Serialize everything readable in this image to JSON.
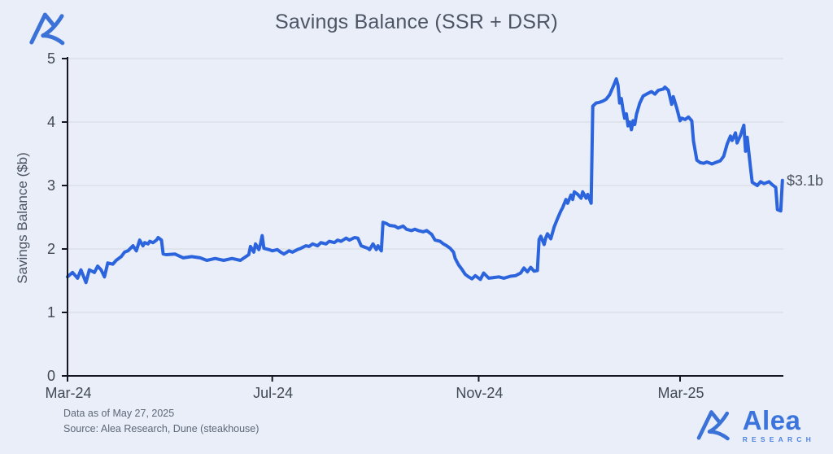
{
  "chart": {
    "title": "Savings Balance (SSR + DSR)",
    "ylabel": "Savings Balance ($b)"
  },
  "footer": {
    "line1": "Data as of May 27, 2025",
    "line2": "Source: Alea Research, Dune (steakhouse)"
  },
  "brand": {
    "name": "Alea",
    "subtitle": "RESEARCH"
  },
  "colors": {
    "background": "#e9eef8",
    "line": "#2b64dd",
    "gridline": "#d5d8df",
    "axis": "#15161f",
    "tick_text": "#414855",
    "logo_blue": "#3b72d8"
  },
  "chart_data": {
    "type": "line",
    "title": "Savings Balance (SSR + DSR)",
    "xlabel": "",
    "ylabel": "Savings Balance ($b)",
    "ylim": [
      0,
      5
    ],
    "y_ticks": [
      0,
      1,
      2,
      3,
      4,
      5
    ],
    "grid": "horizontal",
    "legend": "none",
    "x_unit": "days since 2024-03-01",
    "x_ticks": [
      {
        "label": "Mar-24",
        "day": 0
      },
      {
        "label": "Jul-24",
        "day": 122
      },
      {
        "label": "Nov-24",
        "day": 245
      },
      {
        "label": "Mar-25",
        "day": 365
      }
    ],
    "end_label": {
      "text": "$3.1b",
      "day": 426,
      "value": 3.08
    },
    "series": [
      {
        "name": "Savings Balance (SSR + DSR), $b",
        "points": [
          [
            0,
            1.56
          ],
          [
            3,
            1.63
          ],
          [
            6,
            1.54
          ],
          [
            8,
            1.67
          ],
          [
            11,
            1.47
          ],
          [
            13,
            1.67
          ],
          [
            16,
            1.63
          ],
          [
            18,
            1.73
          ],
          [
            20,
            1.67
          ],
          [
            22,
            1.56
          ],
          [
            24,
            1.78
          ],
          [
            27,
            1.76
          ],
          [
            29,
            1.82
          ],
          [
            32,
            1.88
          ],
          [
            34,
            1.95
          ],
          [
            36,
            1.97
          ],
          [
            39,
            2.05
          ],
          [
            41,
            1.97
          ],
          [
            43,
            2.14
          ],
          [
            45,
            2.05
          ],
          [
            46,
            2.1
          ],
          [
            48,
            2.08
          ],
          [
            49,
            2.12
          ],
          [
            51,
            2.1
          ],
          [
            53,
            2.14
          ],
          [
            54,
            2.18
          ],
          [
            56,
            2.14
          ],
          [
            57,
            1.92
          ],
          [
            59,
            1.91
          ],
          [
            64,
            1.92
          ],
          [
            69,
            1.86
          ],
          [
            74,
            1.88
          ],
          [
            79,
            1.86
          ],
          [
            83,
            1.82
          ],
          [
            88,
            1.85
          ],
          [
            93,
            1.82
          ],
          [
            98,
            1.85
          ],
          [
            103,
            1.82
          ],
          [
            108,
            1.91
          ],
          [
            109,
            2.04
          ],
          [
            111,
            1.95
          ],
          [
            112,
            2.08
          ],
          [
            114,
            1.99
          ],
          [
            115,
            2.08
          ],
          [
            116,
            2.21
          ],
          [
            117,
            2.01
          ],
          [
            120,
            1.99
          ],
          [
            122,
            1.97
          ],
          [
            125,
            1.99
          ],
          [
            127,
            1.95
          ],
          [
            129,
            1.92
          ],
          [
            132,
            1.97
          ],
          [
            134,
            1.95
          ],
          [
            137,
            1.99
          ],
          [
            139,
            2.01
          ],
          [
            142,
            2.05
          ],
          [
            144,
            2.04
          ],
          [
            146,
            2.08
          ],
          [
            149,
            2.05
          ],
          [
            151,
            2.1
          ],
          [
            154,
            2.08
          ],
          [
            156,
            2.12
          ],
          [
            159,
            2.1
          ],
          [
            161,
            2.14
          ],
          [
            163,
            2.12
          ],
          [
            166,
            2.17
          ],
          [
            168,
            2.14
          ],
          [
            171,
            2.18
          ],
          [
            173,
            2.17
          ],
          [
            175,
            2.05
          ],
          [
            176,
            2.04
          ],
          [
            179,
            2.01
          ],
          [
            180,
            1.99
          ],
          [
            182,
            2.08
          ],
          [
            184,
            1.99
          ],
          [
            185,
            2.05
          ],
          [
            187,
            1.97
          ],
          [
            188,
            2.42
          ],
          [
            190,
            2.4
          ],
          [
            192,
            2.37
          ],
          [
            195,
            2.36
          ],
          [
            197,
            2.33
          ],
          [
            200,
            2.36
          ],
          [
            202,
            2.31
          ],
          [
            205,
            2.29
          ],
          [
            207,
            2.31
          ],
          [
            209,
            2.29
          ],
          [
            212,
            2.27
          ],
          [
            214,
            2.29
          ],
          [
            217,
            2.23
          ],
          [
            219,
            2.14
          ],
          [
            222,
            2.12
          ],
          [
            224,
            2.08
          ],
          [
            226,
            2.05
          ],
          [
            228,
            2.01
          ],
          [
            230,
            1.95
          ],
          [
            231,
            1.85
          ],
          [
            233,
            1.75
          ],
          [
            235,
            1.68
          ],
          [
            237,
            1.6
          ],
          [
            239,
            1.56
          ],
          [
            241,
            1.53
          ],
          [
            243,
            1.58
          ],
          [
            246,
            1.52
          ],
          [
            248,
            1.62
          ],
          [
            251,
            1.54
          ],
          [
            254,
            1.55
          ],
          [
            257,
            1.56
          ],
          [
            260,
            1.54
          ],
          [
            264,
            1.57
          ],
          [
            267,
            1.58
          ],
          [
            270,
            1.62
          ],
          [
            272,
            1.7
          ],
          [
            274,
            1.64
          ],
          [
            276,
            1.71
          ],
          [
            278,
            1.65
          ],
          [
            280,
            1.66
          ],
          [
            281,
            2.15
          ],
          [
            282,
            2.2
          ],
          [
            284,
            2.07
          ],
          [
            285,
            2.18
          ],
          [
            286,
            2.24
          ],
          [
            288,
            2.16
          ],
          [
            290,
            2.35
          ],
          [
            292,
            2.48
          ],
          [
            294,
            2.6
          ],
          [
            295,
            2.65
          ],
          [
            297,
            2.78
          ],
          [
            298,
            2.72
          ],
          [
            300,
            2.85
          ],
          [
            301,
            2.78
          ],
          [
            302,
            2.9
          ],
          [
            304,
            2.86
          ],
          [
            306,
            2.8
          ],
          [
            307,
            2.9
          ],
          [
            309,
            2.8
          ],
          [
            310,
            2.86
          ],
          [
            312,
            2.72
          ],
          [
            313,
            4.25
          ],
          [
            315,
            4.3
          ],
          [
            317,
            4.31
          ],
          [
            319,
            4.33
          ],
          [
            321,
            4.36
          ],
          [
            323,
            4.43
          ],
          [
            325,
            4.55
          ],
          [
            327,
            4.68
          ],
          [
            328,
            4.58
          ],
          [
            329,
            4.3
          ],
          [
            330,
            4.37
          ],
          [
            331,
            4.19
          ],
          [
            332,
            4.06
          ],
          [
            333,
            4.13
          ],
          [
            334,
            3.94
          ],
          [
            335,
            4.0
          ],
          [
            336,
            3.88
          ],
          [
            337,
            4.02
          ],
          [
            338,
            3.96
          ],
          [
            339,
            4.12
          ],
          [
            341,
            4.3
          ],
          [
            343,
            4.41
          ],
          [
            345,
            4.44
          ],
          [
            348,
            4.48
          ],
          [
            350,
            4.44
          ],
          [
            352,
            4.5
          ],
          [
            355,
            4.52
          ],
          [
            356,
            4.55
          ],
          [
            358,
            4.5
          ],
          [
            360,
            4.28
          ],
          [
            361,
            4.4
          ],
          [
            363,
            4.22
          ],
          [
            365,
            4.02
          ],
          [
            366,
            4.06
          ],
          [
            368,
            4.04
          ],
          [
            370,
            4.08
          ],
          [
            372,
            4.02
          ],
          [
            373,
            3.7
          ],
          [
            375,
            3.4
          ],
          [
            377,
            3.36
          ],
          [
            379,
            3.35
          ],
          [
            381,
            3.37
          ],
          [
            384,
            3.34
          ],
          [
            386,
            3.36
          ],
          [
            389,
            3.39
          ],
          [
            391,
            3.46
          ],
          [
            393,
            3.65
          ],
          [
            395,
            3.78
          ],
          [
            396,
            3.71
          ],
          [
            398,
            3.83
          ],
          [
            399,
            3.67
          ],
          [
            401,
            3.79
          ],
          [
            403,
            3.95
          ],
          [
            404,
            3.54
          ],
          [
            405,
            3.76
          ],
          [
            407,
            3.28
          ],
          [
            408,
            3.05
          ],
          [
            411,
            3.0
          ],
          [
            413,
            3.06
          ],
          [
            415,
            3.03
          ],
          [
            418,
            3.06
          ],
          [
            420,
            3.01
          ],
          [
            422,
            2.97
          ],
          [
            423,
            2.62
          ],
          [
            425,
            2.6
          ],
          [
            426,
            3.08
          ]
        ]
      }
    ]
  }
}
